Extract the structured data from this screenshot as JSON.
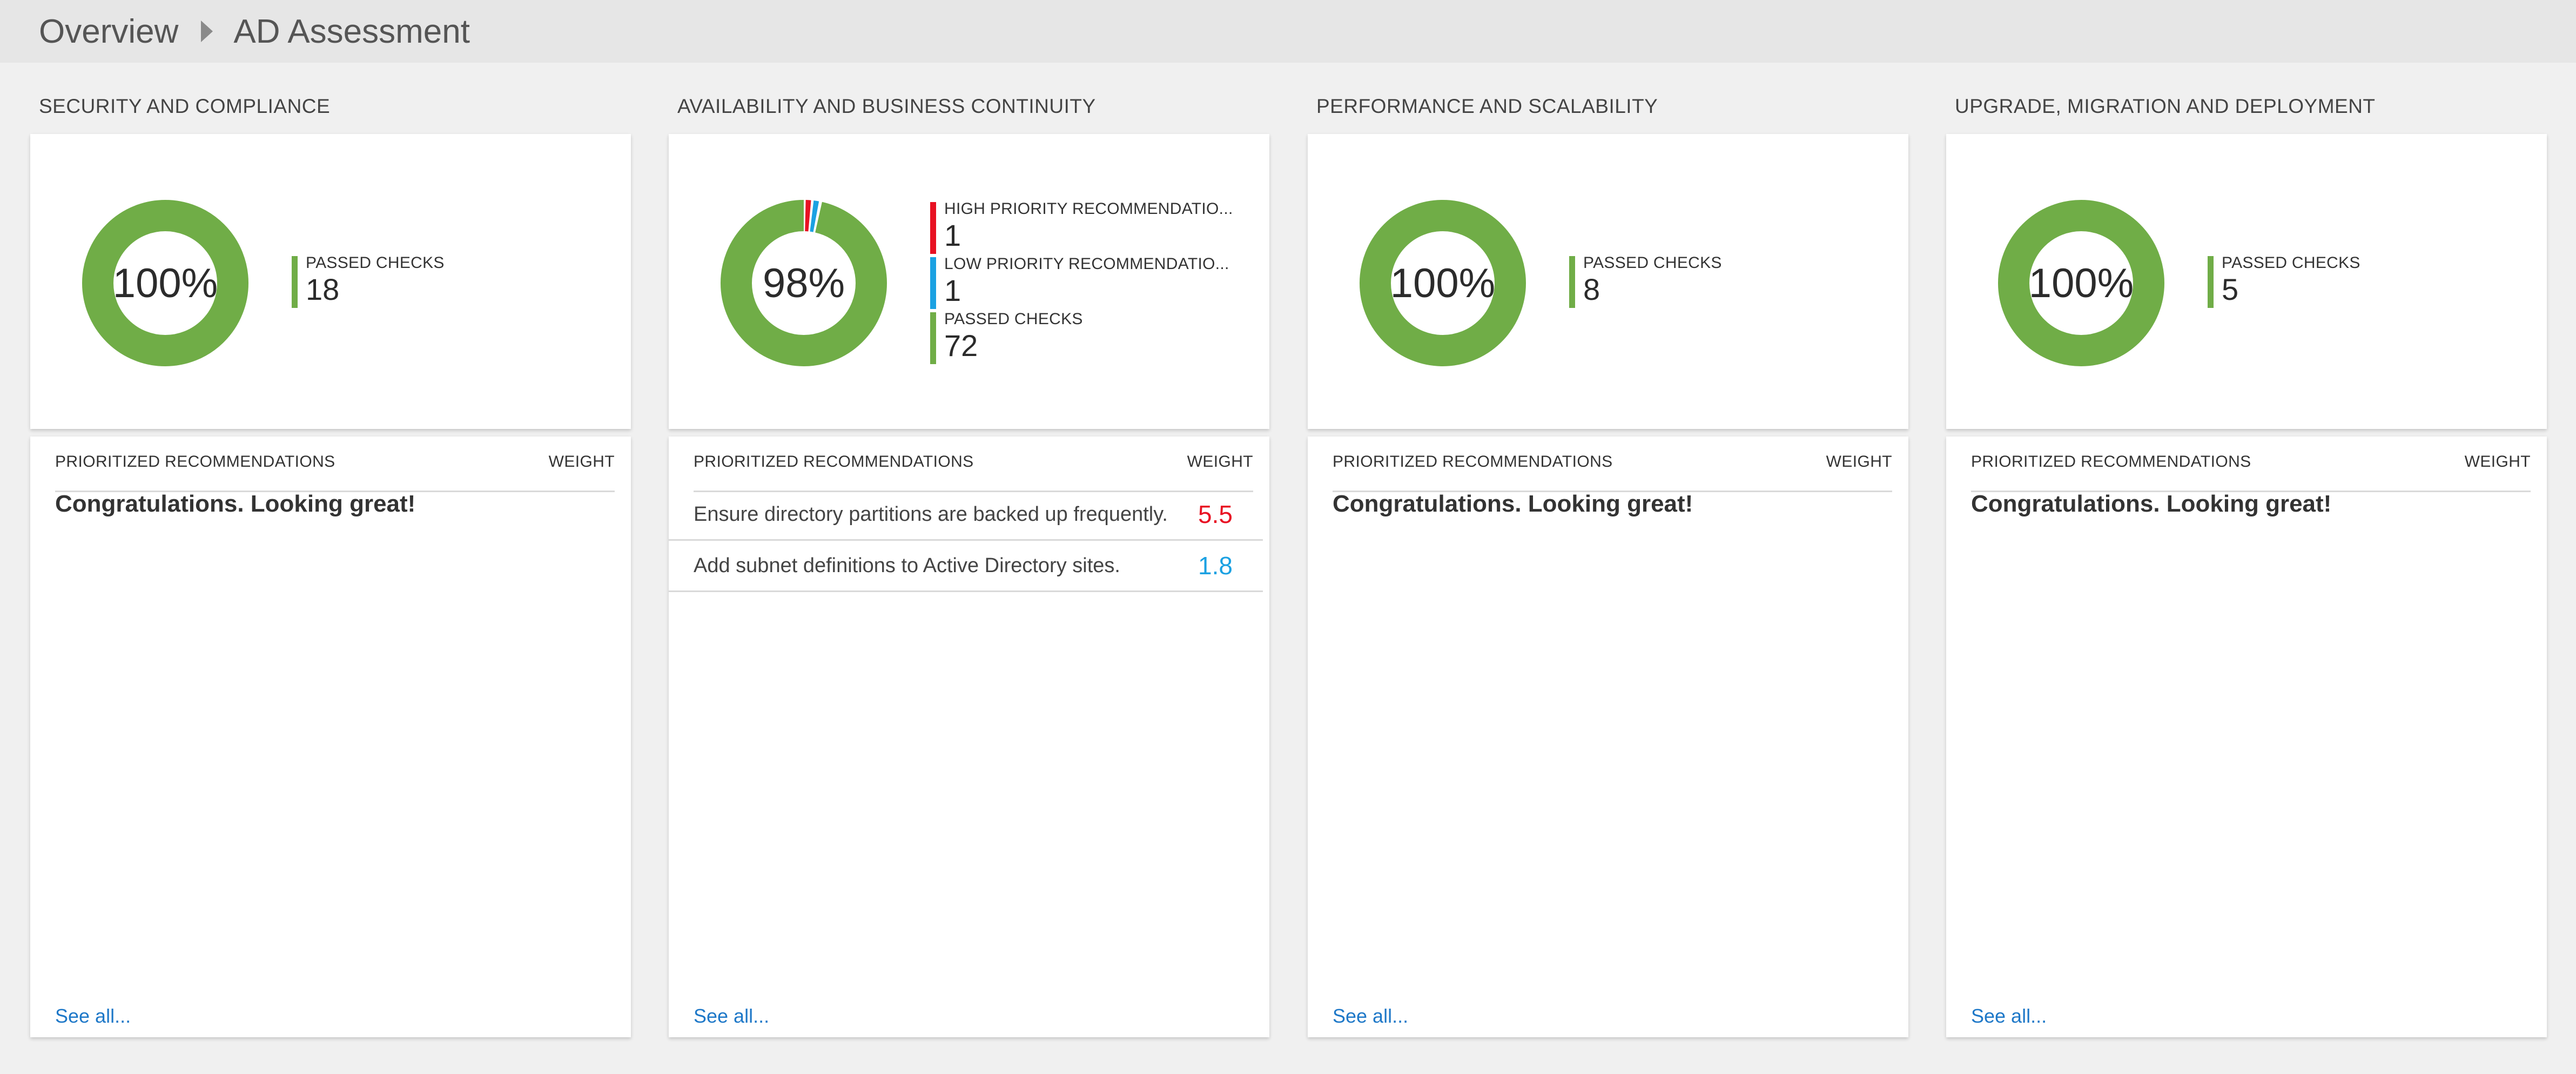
{
  "breadcrumb": {
    "items": [
      "Overview",
      "AD Assessment"
    ]
  },
  "colors": {
    "passed": "#70ad47",
    "high": "#e81123",
    "low": "#1ba1e2",
    "link": "#1e78c8"
  },
  "columns": [
    {
      "title": "SECURITY AND COMPLIANCE",
      "donut_label": "100%",
      "legend": [
        {
          "label": "PASSED CHECKS",
          "value": "18",
          "color": "#70ad47"
        }
      ],
      "recommendations": {
        "header": "PRIORITIZED RECOMMENDATIONS",
        "weight_header": "WEIGHT",
        "empty_message": "Congratulations. Looking great!",
        "see_all": "See all..."
      }
    },
    {
      "title": "AVAILABILITY AND BUSINESS CONTINUITY",
      "donut_label": "98%",
      "legend": [
        {
          "label": "HIGH PRIORITY RECOMMENDATIO...",
          "value": "1",
          "color": "#e81123"
        },
        {
          "label": "LOW PRIORITY RECOMMENDATIO...",
          "value": "1",
          "color": "#1ba1e2"
        },
        {
          "label": "PASSED CHECKS",
          "value": "72",
          "color": "#70ad47"
        }
      ],
      "recommendations": {
        "header": "PRIORITIZED RECOMMENDATIONS",
        "weight_header": "WEIGHT",
        "items": [
          {
            "text": "Ensure directory partitions are backed up frequently.",
            "weight": "5.5",
            "color": "#e81123"
          },
          {
            "text": "Add subnet definitions to Active Directory sites.",
            "weight": "1.8",
            "color": "#1ba1e2"
          }
        ],
        "see_all": "See all..."
      }
    },
    {
      "title": "PERFORMANCE AND SCALABILITY",
      "donut_label": "100%",
      "legend": [
        {
          "label": "PASSED CHECKS",
          "value": "8",
          "color": "#70ad47"
        }
      ],
      "recommendations": {
        "header": "PRIORITIZED RECOMMENDATIONS",
        "weight_header": "WEIGHT",
        "empty_message": "Congratulations. Looking great!",
        "see_all": "See all..."
      }
    },
    {
      "title": "UPGRADE, MIGRATION AND DEPLOYMENT",
      "donut_label": "100%",
      "legend": [
        {
          "label": "PASSED CHECKS",
          "value": "5",
          "color": "#70ad47"
        }
      ],
      "recommendations": {
        "header": "PRIORITIZED RECOMMENDATIONS",
        "weight_header": "WEIGHT",
        "empty_message": "Congratulations. Looking great!",
        "see_all": "See all..."
      }
    }
  ]
}
